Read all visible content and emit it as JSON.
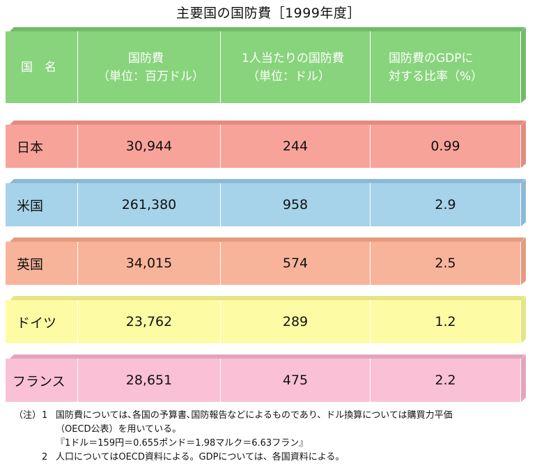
{
  "title": "主要国の国防費［1999年度］",
  "header": {
    "country": "国　名",
    "defense_line1": "国防費",
    "defense_line2": "（単位：百万ドル）",
    "per_capita_line1": "1人当たりの国防費",
    "per_capita_line2": "（単位：ドル）",
    "gdp_line1": "国防費のGDPに",
    "gdp_line2": "対する比率（%）"
  },
  "rows": [
    {
      "country": "日本",
      "defense": "30,944",
      "per_capita": "244",
      "gdp_ratio": "0.99",
      "color": "#f8a39a"
    },
    {
      "country": "米国",
      "defense": "261,380",
      "per_capita": "958",
      "gdp_ratio": "2.9",
      "color": "#a6d3ea"
    },
    {
      "country": "英国",
      "defense": "34,015",
      "per_capita": "574",
      "gdp_ratio": "2.5",
      "color": "#f8b49a"
    },
    {
      "country": "ドイツ",
      "defense": "23,762",
      "per_capita": "289",
      "gdp_ratio": "1.2",
      "color": "#fdfca4"
    },
    {
      "country": "フランス",
      "defense": "28,651",
      "per_capita": "475",
      "gdp_ratio": "2.2",
      "color": "#fac0d6"
    }
  ],
  "header_color": "#88d47c",
  "notes": {
    "prefix": "（注）",
    "n1_num": "1",
    "n1_line1": "国防費については､各国の予算書､国防報告などによるものであり、ドル換算については購買力平価",
    "n1_line2": "（OECD公表）を用いている。",
    "n1_line3": "『1ドル＝159円＝0.655ポンド＝1.98マルク＝6.63フラン』",
    "n2_num": "2",
    "n2_line1": "人口についてはOECD資料による。GDPについては、各国資料による。"
  }
}
